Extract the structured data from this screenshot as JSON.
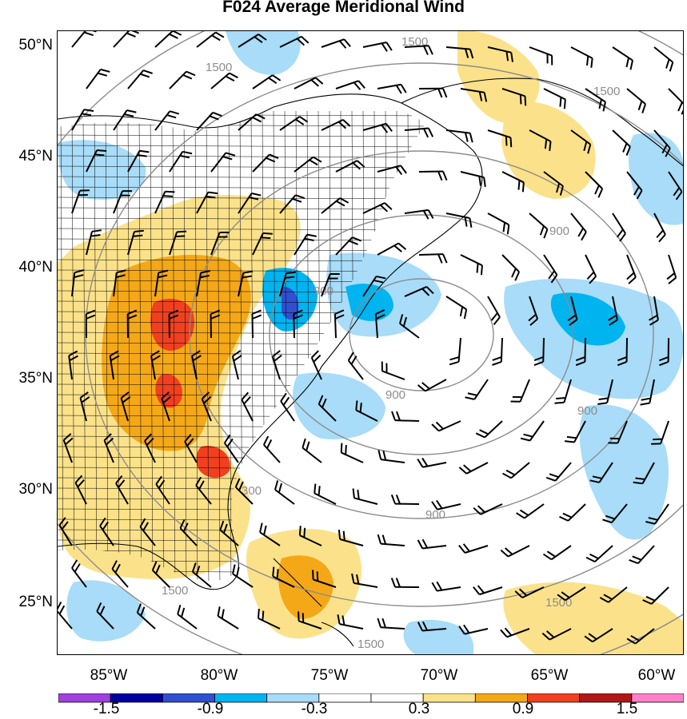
{
  "title": "F024 Average Meridional Wind",
  "lat_labels": [
    "50°N",
    "45°N",
    "40°N",
    "35°N",
    "30°N",
    "25°N"
  ],
  "lon_labels": [
    "85°W",
    "80°W",
    "75°W",
    "70°W",
    "65°W",
    "60°W"
  ],
  "contour_labels": [
    "1500",
    "1500",
    "1500",
    "900",
    "900",
    "900",
    "900",
    "300",
    "900",
    "1500",
    "1500",
    "1500"
  ],
  "colorbar": {
    "colors": [
      "#a040e0",
      "#0000a0",
      "#3050d0",
      "#00b4f0",
      "#a8dcf8",
      "#ffffff",
      "#ffffff",
      "#fbe28a",
      "#f4a818",
      "#f04020",
      "#b01818",
      "#ff80c8"
    ],
    "labels": [
      "-1.5",
      "-0.9",
      "-0.3",
      "0.3",
      "0.9",
      "1.5"
    ]
  },
  "fill_colors": {
    "light_blue": "#a8dcf8",
    "blue": "#00b4f0",
    "dark_blue": "#3050d0",
    "light_yellow": "#fbe28a",
    "orange": "#f4a818",
    "red": "#f04020",
    "dark_red": "#b01818"
  }
}
